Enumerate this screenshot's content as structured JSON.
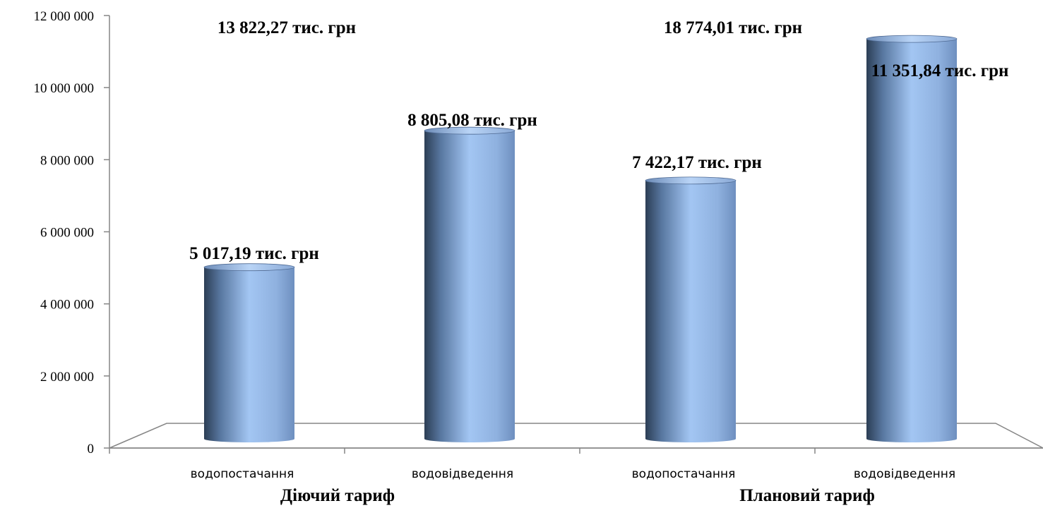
{
  "chart_data": {
    "type": "bar",
    "title": "",
    "xlabel": "",
    "ylabel": "",
    "ylim": [
      0,
      12000000
    ],
    "y_ticks": [
      0,
      2000000,
      4000000,
      6000000,
      8000000,
      10000000,
      12000000
    ],
    "y_tick_labels": [
      "0",
      "2 000 000",
      "4 000 000",
      "6 000 000",
      "8 000 000",
      "10 000 000",
      "12 000 000"
    ],
    "grid": false,
    "legend": "none",
    "bar_color": "#8fb4e3",
    "bar_shade_color": "#2c3e55",
    "categories": [
      "водопостачання",
      "водовідведення",
      "водопостачання",
      "водовідведення"
    ],
    "values": [
      5017190,
      8805080,
      7422170,
      11351840
    ],
    "data_labels": [
      "5 017,19  тис. грн",
      "8 805,08 тис. грн",
      "7 422,17 тис. грн",
      "11 351,84 тис. грн"
    ],
    "groups": [
      {
        "label": "Діючий тариф",
        "total_label": "13 822,27 тис. грн",
        "category_indices": [
          0,
          1
        ]
      },
      {
        "label": "Плановий тариф",
        "total_label": "18 774,01 тис. грн",
        "category_indices": [
          2,
          3
        ]
      }
    ]
  }
}
